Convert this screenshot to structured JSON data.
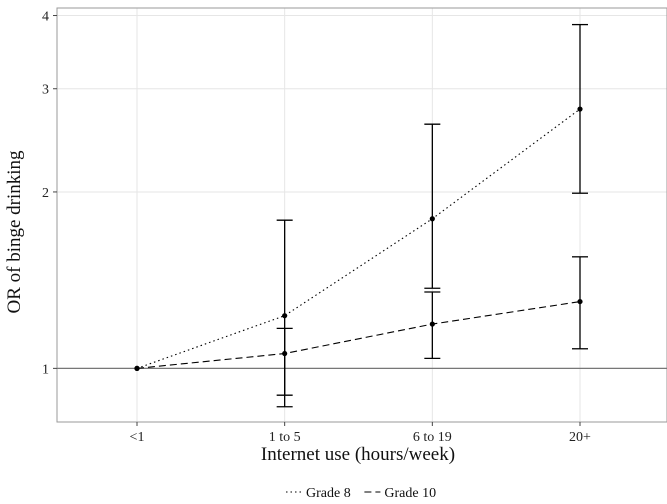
{
  "chart_data": {
    "type": "line",
    "title": "",
    "xlabel": "Internet use (hours/week)",
    "ylabel": "OR of binge drinking",
    "categories": [
      "<1",
      "1 to 5",
      "6 to 19",
      "20+"
    ],
    "y_scale": "log",
    "ylim": [
      0.81,
      4.12
    ],
    "yticks": [
      1,
      2,
      3,
      4
    ],
    "reference_line": 1,
    "grid": true,
    "legend_position": "bottom",
    "series": [
      {
        "name": "Grade 8",
        "line_style": "dotted",
        "values": [
          1.0,
          1.23,
          1.8,
          2.77
        ],
        "ci_low": [
          null,
          0.9,
          1.37,
          1.99
        ],
        "ci_high": [
          null,
          1.79,
          2.61,
          3.86
        ]
      },
      {
        "name": "Grade 10",
        "line_style": "dashed",
        "values": [
          1.0,
          1.06,
          1.19,
          1.3
        ],
        "ci_low": [
          null,
          0.86,
          1.04,
          1.08
        ],
        "ci_high": [
          null,
          1.17,
          1.35,
          1.55
        ]
      }
    ],
    "colors": {
      "line": "#000000",
      "reference_line": "#777777",
      "grid": "#e6e6e6",
      "panel_border": "#9a9a9a"
    }
  }
}
